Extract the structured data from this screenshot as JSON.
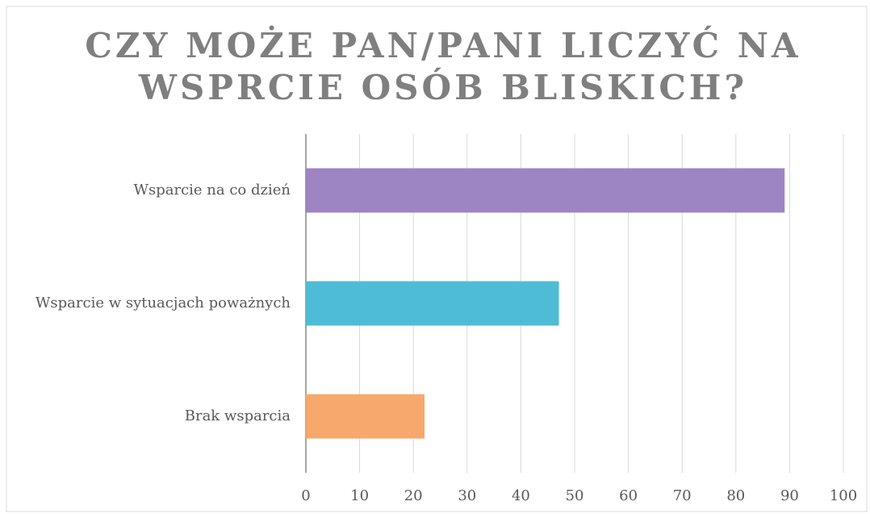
{
  "chart_data": {
    "type": "barh",
    "title": [
      "CZY MOŻE PAN/PANI LICZYĆ NA",
      "WSPRCIE OSÓB BLISKICH?"
    ],
    "categories": [
      "Wsparcie na co dzień",
      "Wsparcie w sytuacjach poważnych",
      "Brak wsparcia"
    ],
    "values": [
      89,
      47,
      22
    ],
    "colors": [
      "#9d85c4",
      "#4fbcd6",
      "#f7a86c"
    ],
    "xlim": [
      0,
      100
    ],
    "xticks": [
      0,
      10,
      20,
      30,
      40,
      50,
      60,
      70,
      80,
      90,
      100
    ],
    "grid": true
  }
}
